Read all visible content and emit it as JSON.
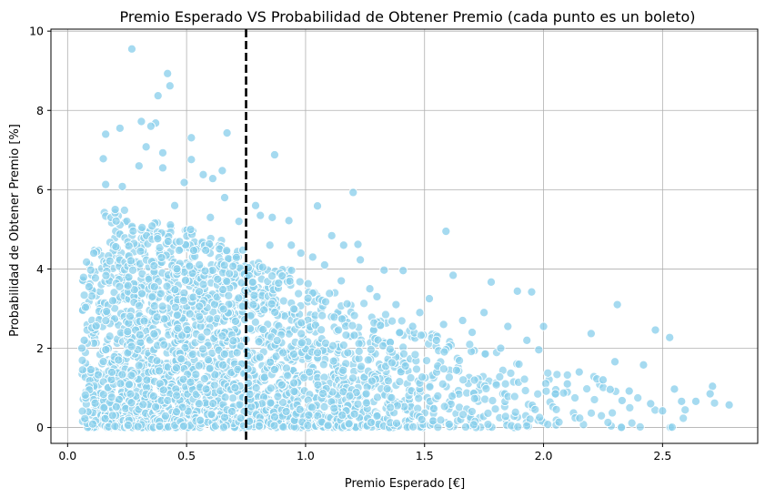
{
  "chart_data": {
    "type": "scatter",
    "title": "Premio Esperado VS Probabilidad de Obtener Premio (cada punto es un boleto)",
    "xlabel": "Premio Esperado [€]",
    "ylabel": "Probabilidad de Obtener Premio [%]",
    "xlim": [
      -0.07,
      2.9
    ],
    "ylim": [
      -0.4,
      10.05
    ],
    "xticks": [
      0.0,
      0.5,
      1.0,
      1.5,
      2.0,
      2.5
    ],
    "xtick_labels": [
      "0.0",
      "0.5",
      "1.0",
      "1.5",
      "2.0",
      "2.5"
    ],
    "yticks": [
      0,
      2,
      4,
      6,
      8,
      10
    ],
    "ytick_labels": [
      "0",
      "2",
      "4",
      "6",
      "8",
      "10"
    ],
    "grid": true,
    "marker_color": "#87CEEB",
    "marker_edge_color": "#ffffff",
    "reference_line": {
      "orientation": "vertical",
      "x": 0.75,
      "style": "dashed",
      "color": "#000000"
    },
    "highlighted_points": [
      {
        "x": 0.27,
        "y": 9.55
      },
      {
        "x": 0.42,
        "y": 8.93
      },
      {
        "x": 0.43,
        "y": 8.62
      },
      {
        "x": 0.38,
        "y": 8.37
      },
      {
        "x": 0.31,
        "y": 7.72
      },
      {
        "x": 0.37,
        "y": 7.68
      },
      {
        "x": 0.35,
        "y": 7.6
      },
      {
        "x": 0.22,
        "y": 7.55
      },
      {
        "x": 0.16,
        "y": 7.4
      },
      {
        "x": 0.67,
        "y": 7.43
      },
      {
        "x": 0.52,
        "y": 7.31
      },
      {
        "x": 0.33,
        "y": 7.08
      },
      {
        "x": 0.4,
        "y": 6.93
      },
      {
        "x": 0.87,
        "y": 6.88
      },
      {
        "x": 0.15,
        "y": 6.78
      },
      {
        "x": 0.52,
        "y": 6.76
      },
      {
        "x": 0.3,
        "y": 6.6
      },
      {
        "x": 0.4,
        "y": 6.55
      },
      {
        "x": 0.65,
        "y": 6.48
      },
      {
        "x": 0.57,
        "y": 6.38
      },
      {
        "x": 0.61,
        "y": 6.28
      },
      {
        "x": 0.49,
        "y": 6.18
      },
      {
        "x": 0.16,
        "y": 6.13
      },
      {
        "x": 0.23,
        "y": 6.08
      },
      {
        "x": 1.2,
        "y": 5.93
      },
      {
        "x": 0.66,
        "y": 5.8
      },
      {
        "x": 0.79,
        "y": 5.6
      },
      {
        "x": 1.05,
        "y": 5.59
      },
      {
        "x": 0.81,
        "y": 5.35
      },
      {
        "x": 0.86,
        "y": 5.3
      },
      {
        "x": 0.93,
        "y": 5.22
      },
      {
        "x": 1.59,
        "y": 4.95
      },
      {
        "x": 1.11,
        "y": 4.84
      },
      {
        "x": 0.94,
        "y": 4.6
      },
      {
        "x": 1.16,
        "y": 4.6
      },
      {
        "x": 1.22,
        "y": 4.62
      },
      {
        "x": 0.85,
        "y": 4.6
      },
      {
        "x": 1.03,
        "y": 4.3
      },
      {
        "x": 1.23,
        "y": 4.23
      },
      {
        "x": 1.33,
        "y": 3.97
      },
      {
        "x": 1.41,
        "y": 3.96
      },
      {
        "x": 1.62,
        "y": 3.84
      },
      {
        "x": 1.78,
        "y": 3.67
      },
      {
        "x": 1.89,
        "y": 3.44
      },
      {
        "x": 1.95,
        "y": 3.42
      },
      {
        "x": 2.31,
        "y": 3.1
      },
      {
        "x": 1.52,
        "y": 3.25
      },
      {
        "x": 1.75,
        "y": 2.9
      },
      {
        "x": 2.2,
        "y": 2.37
      },
      {
        "x": 2.47,
        "y": 2.46
      },
      {
        "x": 2.53,
        "y": 2.27
      },
      {
        "x": 2.0,
        "y": 2.55
      },
      {
        "x": 2.3,
        "y": 1.66
      },
      {
        "x": 2.42,
        "y": 1.58
      },
      {
        "x": 2.71,
        "y": 1.04
      },
      {
        "x": 2.55,
        "y": 0.97
      },
      {
        "x": 2.7,
        "y": 0.85
      },
      {
        "x": 2.64,
        "y": 0.66
      },
      {
        "x": 2.58,
        "y": 0.66
      },
      {
        "x": 2.78,
        "y": 0.57
      },
      {
        "x": 2.5,
        "y": 0.42
      },
      {
        "x": 2.45,
        "y": 0.6
      },
      {
        "x": 2.36,
        "y": 0.92
      },
      {
        "x": 2.33,
        "y": 0.68
      },
      {
        "x": 2.28,
        "y": 0.96
      },
      {
        "x": 2.25,
        "y": 1.2
      },
      {
        "x": 2.15,
        "y": 1.4
      },
      {
        "x": 2.1,
        "y": 1.1
      },
      {
        "x": 2.05,
        "y": 0.85
      },
      {
        "x": 1.98,
        "y": 1.96
      },
      {
        "x": 1.93,
        "y": 2.2
      },
      {
        "x": 1.85,
        "y": 2.55
      },
      {
        "x": 1.82,
        "y": 2.0
      },
      {
        "x": 1.7,
        "y": 2.4
      },
      {
        "x": 1.66,
        "y": 2.7
      },
      {
        "x": 1.58,
        "y": 2.6
      },
      {
        "x": 1.55,
        "y": 2.2
      },
      {
        "x": 1.48,
        "y": 2.9
      },
      {
        "x": 1.45,
        "y": 2.55
      },
      {
        "x": 1.38,
        "y": 3.1
      },
      {
        "x": 1.3,
        "y": 3.3
      },
      {
        "x": 1.27,
        "y": 3.5
      },
      {
        "x": 1.15,
        "y": 3.7
      },
      {
        "x": 1.08,
        "y": 4.1
      },
      {
        "x": 0.98,
        "y": 4.4
      },
      {
        "x": 0.72,
        "y": 5.2
      },
      {
        "x": 0.6,
        "y": 5.3
      },
      {
        "x": 0.45,
        "y": 5.6
      },
      {
        "x": 0.2,
        "y": 5.5
      },
      {
        "x": 0.11,
        "y": 4.4
      },
      {
        "x": 0.09,
        "y": 3.55
      },
      {
        "x": 0.07,
        "y": 2.2
      },
      {
        "x": 0.06,
        "y": 2.0
      }
    ],
    "density_profile": {
      "x_centers": [
        0.1,
        0.2,
        0.3,
        0.4,
        0.5,
        0.6,
        0.7,
        0.8,
        0.9,
        1.0,
        1.1,
        1.2,
        1.3,
        1.4,
        1.5,
        1.6,
        1.7,
        1.8,
        1.9,
        2.0,
        2.1,
        2.2,
        2.3,
        2.4,
        2.5,
        2.6,
        2.7
      ],
      "relative_density": [
        0.55,
        0.85,
        1.0,
        1.0,
        0.95,
        0.85,
        0.75,
        0.65,
        0.6,
        0.52,
        0.45,
        0.38,
        0.32,
        0.26,
        0.2,
        0.16,
        0.13,
        0.1,
        0.08,
        0.06,
        0.045,
        0.035,
        0.025,
        0.015,
        0.01,
        0.006,
        0.004
      ],
      "dense_y_max": [
        4.5,
        5.5,
        5.3,
        5.2,
        5.0,
        4.8,
        4.5,
        4.2,
        4.0,
        3.7,
        3.4,
        3.2,
        2.9,
        2.7,
        2.5,
        2.3,
        2.1,
        1.9,
        1.8,
        1.6,
        1.4,
        1.3,
        1.1,
        1.0,
        0.9,
        0.8,
        0.7
      ]
    }
  }
}
